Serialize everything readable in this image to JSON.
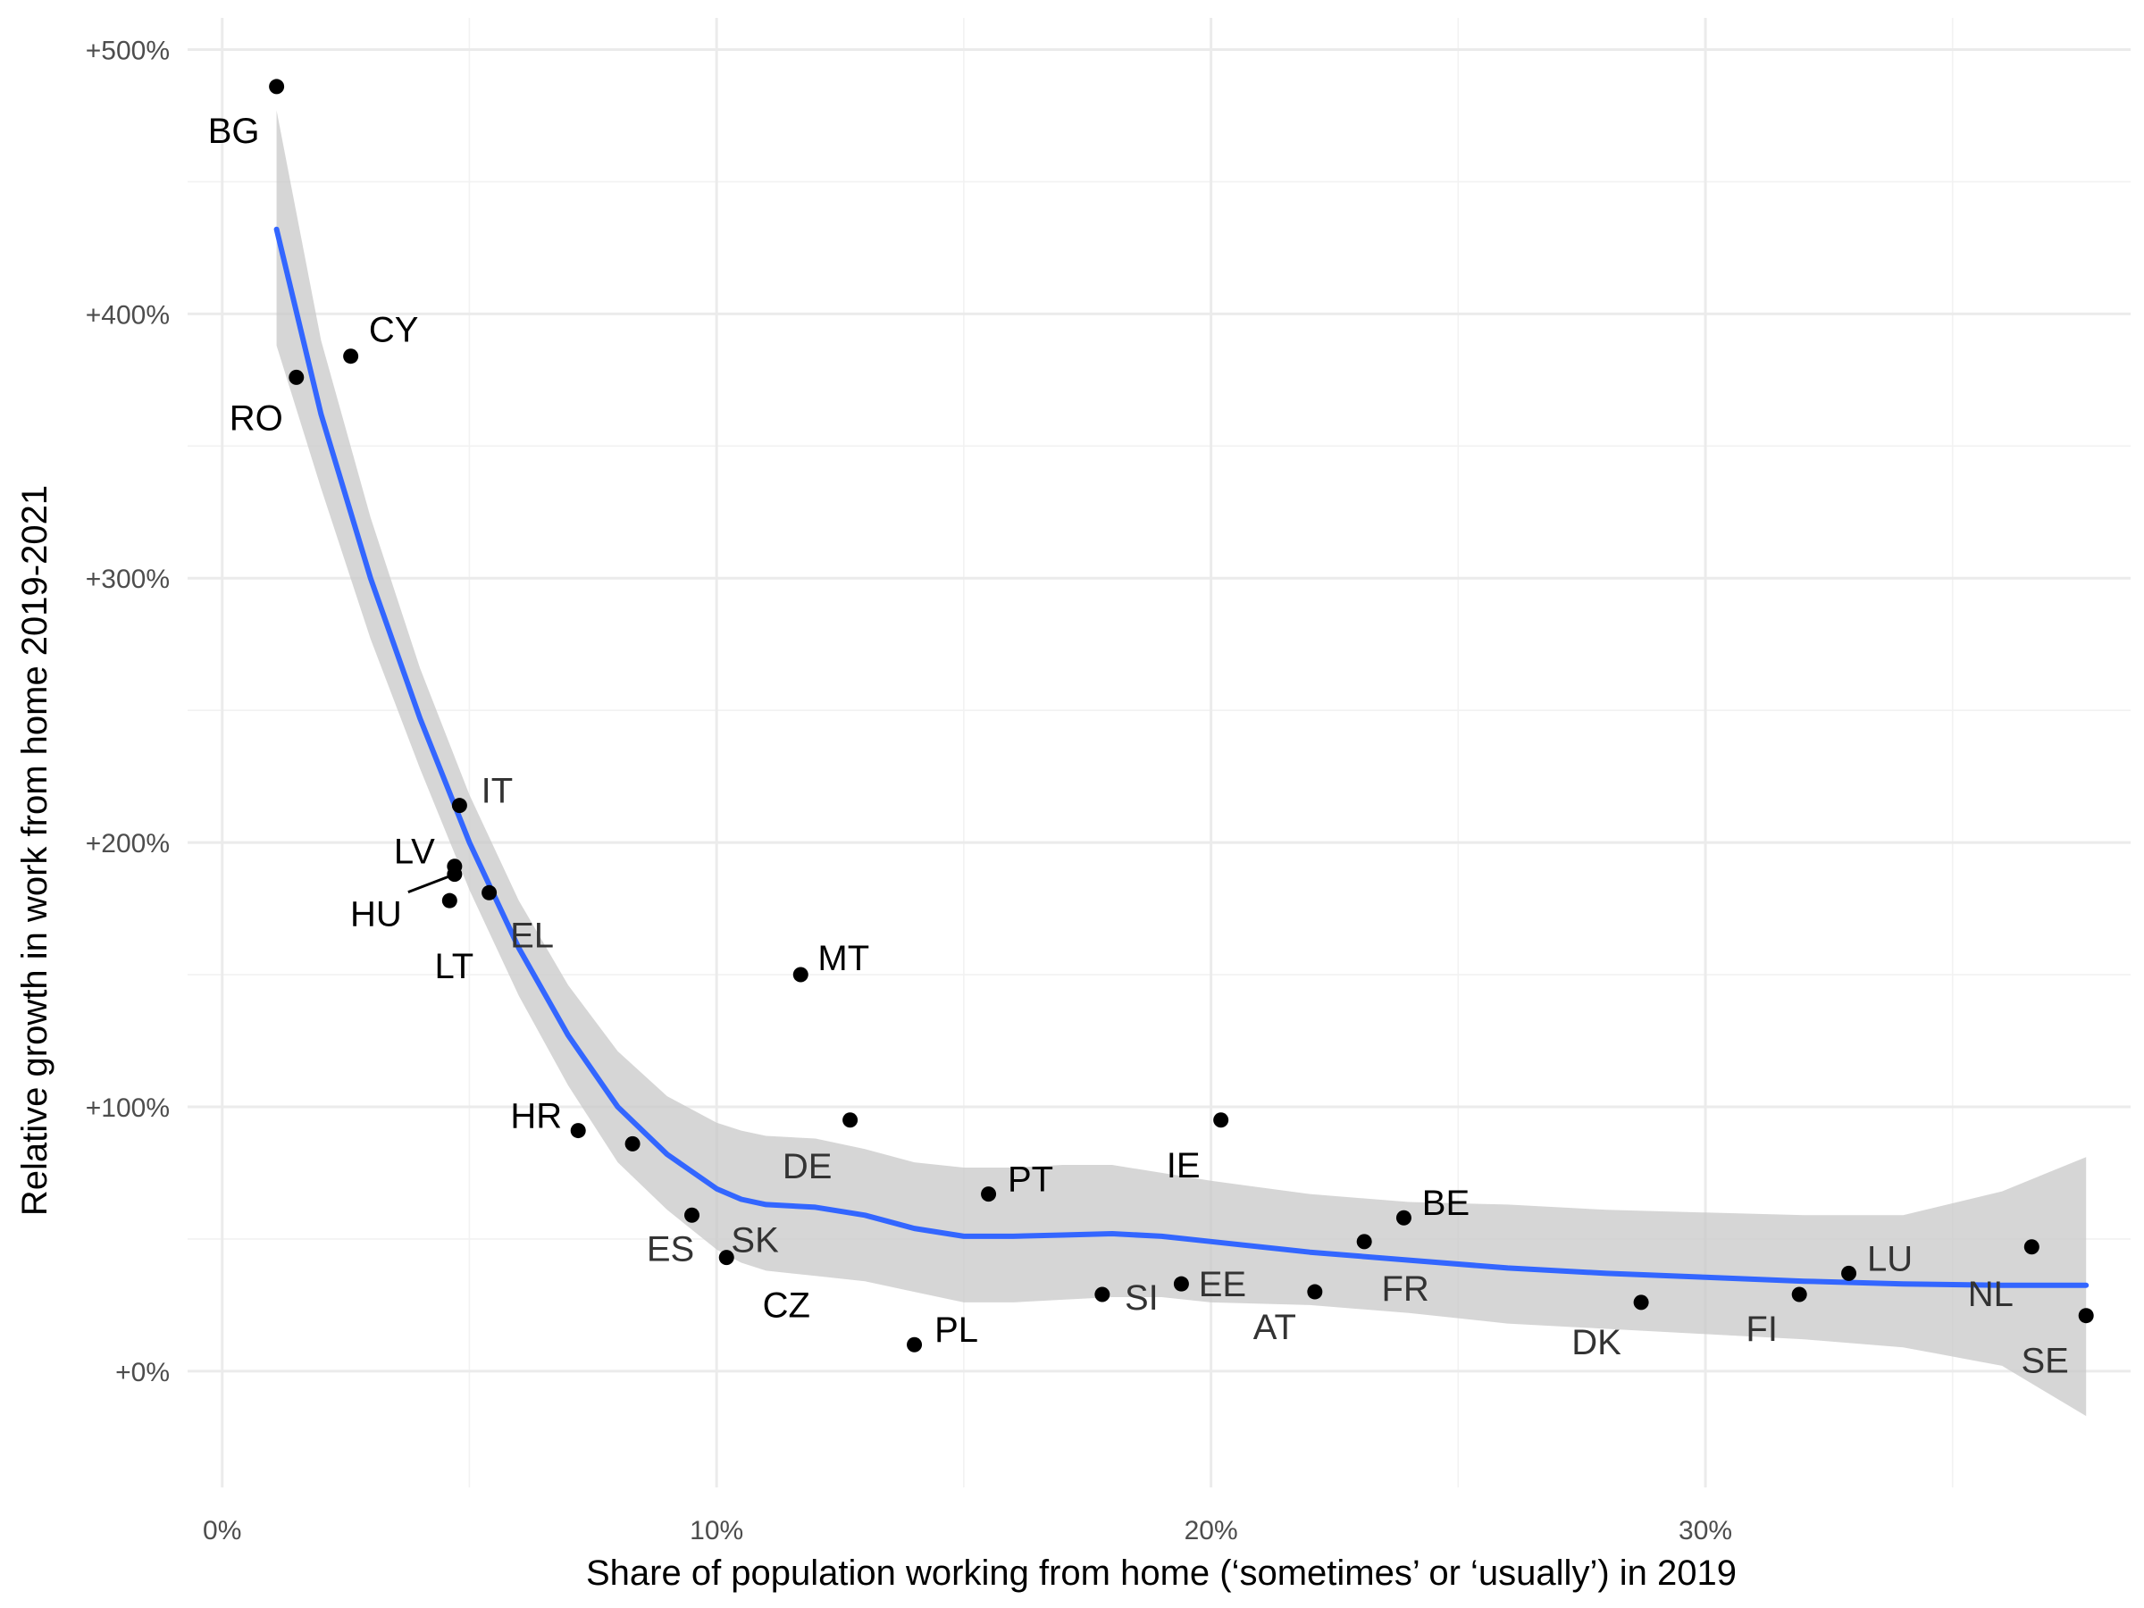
{
  "chart_data": {
    "type": "scatter",
    "xlabel": "Share of population working from home (‘sometimes’ or ‘usually’) in 2019",
    "ylabel": "Relative growth in work from home 2019-2021",
    "x_ticks": [
      "0%",
      "10%",
      "20%",
      "30%"
    ],
    "y_ticks": [
      "+0%",
      "+100%",
      "+200%",
      "+300%",
      "+400%",
      "+500%"
    ],
    "xlim": [
      -0.7,
      38.6
    ],
    "ylim": [
      -44,
      512
    ],
    "grid": true,
    "colors": {
      "points": "#000000",
      "smooth_line": "#3366ff",
      "ribbon": "#c8c8c8",
      "grid": "#ebebeb"
    },
    "points": [
      {
        "label": "BG",
        "x": 1.1,
        "y": 486
      },
      {
        "label": "CY",
        "x": 2.6,
        "y": 384
      },
      {
        "label": "RO",
        "x": 1.5,
        "y": 376
      },
      {
        "label": "IT",
        "x": 4.8,
        "y": 214
      },
      {
        "label": "LV",
        "x": 4.7,
        "y": 191
      },
      {
        "label": "HU",
        "x": 4.7,
        "y": 188
      },
      {
        "label": "LT",
        "x": 4.6,
        "y": 178
      },
      {
        "label": "EL",
        "x": 5.4,
        "y": 181
      },
      {
        "label": "MT",
        "x": 11.7,
        "y": 150
      },
      {
        "label": "HR",
        "x": 7.2,
        "y": 91
      },
      {
        "label": "ES",
        "x": 9.5,
        "y": 59
      },
      {
        "label": "DE",
        "x": 12.7,
        "y": 95
      },
      {
        "label": "SK",
        "x": 8.3,
        "y": 86
      },
      {
        "label": "CZ",
        "x": 10.2,
        "y": 43
      },
      {
        "label": "PT",
        "x": 15.5,
        "y": 67
      },
      {
        "label": "PL",
        "x": 14.0,
        "y": 10
      },
      {
        "label": "IE",
        "x": 20.2,
        "y": 95
      },
      {
        "label": "SI",
        "x": 17.8,
        "y": 29
      },
      {
        "label": "EE",
        "x": 19.4,
        "y": 33
      },
      {
        "label": "AT",
        "x": 22.1,
        "y": 30
      },
      {
        "label": "FR",
        "x": 23.1,
        "y": 49
      },
      {
        "label": "BE",
        "x": 23.9,
        "y": 58
      },
      {
        "label": "DK",
        "x": 28.7,
        "y": 26
      },
      {
        "label": "FI",
        "x": 31.9,
        "y": 29
      },
      {
        "label": "LU",
        "x": 32.9,
        "y": 37
      },
      {
        "label": "NL",
        "x": 36.6,
        "y": 47
      },
      {
        "label": "SE",
        "x": 37.7,
        "y": 21
      }
    ],
    "smooth": {
      "x": [
        1.1,
        2.0,
        3.0,
        4.0,
        5.0,
        6.0,
        7.0,
        8.0,
        9.0,
        10.0,
        10.5,
        11.0,
        12.0,
        13.0,
        14.0,
        15.0,
        16.0,
        17.0,
        18.0,
        19.0,
        20.0,
        22.0,
        24.0,
        26.0,
        28.0,
        30.0,
        32.0,
        34.0,
        36.0,
        37.7
      ],
      "y": [
        432,
        362,
        300,
        247,
        200,
        160,
        127,
        100,
        82,
        69,
        65,
        63,
        62,
        59,
        54,
        51,
        51,
        51.5,
        52,
        51,
        49,
        45,
        42,
        39,
        37,
        35.5,
        34,
        33,
        32.5,
        32.5
      ],
      "lower": [
        388,
        334,
        277,
        228,
        182,
        142,
        108,
        79,
        61,
        46,
        41,
        38,
        36,
        34,
        30,
        26,
        26,
        27,
        28,
        28,
        26,
        25,
        22,
        18,
        16,
        14,
        12,
        9,
        2,
        -17
      ],
      "upper": [
        477,
        390,
        323,
        266,
        218,
        178,
        146,
        121,
        104,
        94,
        91,
        89,
        88,
        84,
        79,
        77,
        77,
        78,
        78,
        75,
        72,
        67,
        64,
        63,
        61,
        60,
        59,
        59,
        68,
        81
      ]
    }
  }
}
